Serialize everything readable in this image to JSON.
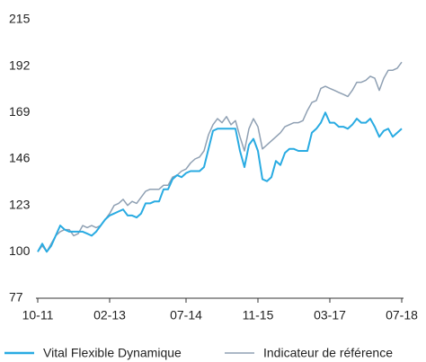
{
  "chart_data": {
    "type": "line",
    "categories": [
      "10-11",
      null,
      null,
      null,
      null,
      null,
      null,
      null,
      null,
      null,
      null,
      null,
      null,
      null,
      null,
      null,
      "02-13",
      null,
      null,
      null,
      null,
      null,
      null,
      null,
      null,
      null,
      null,
      null,
      null,
      null,
      null,
      null,
      null,
      "07-14",
      null,
      null,
      null,
      null,
      null,
      null,
      null,
      null,
      null,
      null,
      null,
      null,
      null,
      null,
      null,
      "11-15",
      null,
      null,
      null,
      null,
      null,
      null,
      null,
      null,
      null,
      null,
      null,
      null,
      null,
      null,
      null,
      "03-17",
      null,
      null,
      null,
      null,
      null,
      null,
      null,
      null,
      null,
      null,
      null,
      null,
      null,
      null,
      null,
      "07-18"
    ],
    "series": [
      {
        "name": "Vital Flexible Dynamique",
        "color": "#29abe2",
        "values": [
          100,
          104,
          100,
          103,
          108,
          113,
          111,
          110,
          110,
          110,
          110,
          109,
          108,
          110,
          113,
          116,
          118,
          119,
          120,
          121,
          118,
          118,
          117,
          119,
          124,
          124,
          125,
          125,
          131,
          131,
          136,
          138,
          137,
          139,
          140,
          140,
          140,
          142,
          151,
          160,
          161,
          161,
          161,
          161,
          161,
          150,
          142,
          153,
          156,
          150,
          136,
          135,
          137,
          145,
          143,
          149,
          151,
          151,
          150,
          150,
          150,
          159,
          161,
          164,
          169,
          164,
          164,
          162,
          162,
          161,
          163,
          166,
          164,
          164,
          166,
          162,
          157,
          160,
          161,
          157,
          159,
          161
        ]
      },
      {
        "name": "Indicateur de référence",
        "color": "#8fa0b3",
        "values": [
          100,
          103,
          100,
          104,
          108,
          110,
          111,
          111,
          108,
          109,
          113,
          112,
          113,
          112,
          113,
          116,
          119,
          123,
          124,
          126,
          123,
          125,
          124,
          127,
          130,
          131,
          131,
          131,
          133,
          133,
          137,
          138,
          140,
          141,
          144,
          146,
          147,
          150,
          158,
          163,
          166,
          164,
          167,
          163,
          165,
          157,
          150,
          161,
          166,
          162,
          151,
          153,
          155,
          157,
          159,
          162,
          163,
          164,
          164,
          165,
          170,
          174,
          175,
          181,
          182,
          181,
          180,
          179,
          178,
          177,
          180,
          184,
          184,
          185,
          187,
          186,
          180,
          186,
          190,
          190,
          191,
          194
        ]
      }
    ],
    "ylim": [
      77,
      215
    ],
    "yticks": [
      77,
      100,
      123,
      146,
      169,
      192,
      215
    ],
    "grid": false
  }
}
